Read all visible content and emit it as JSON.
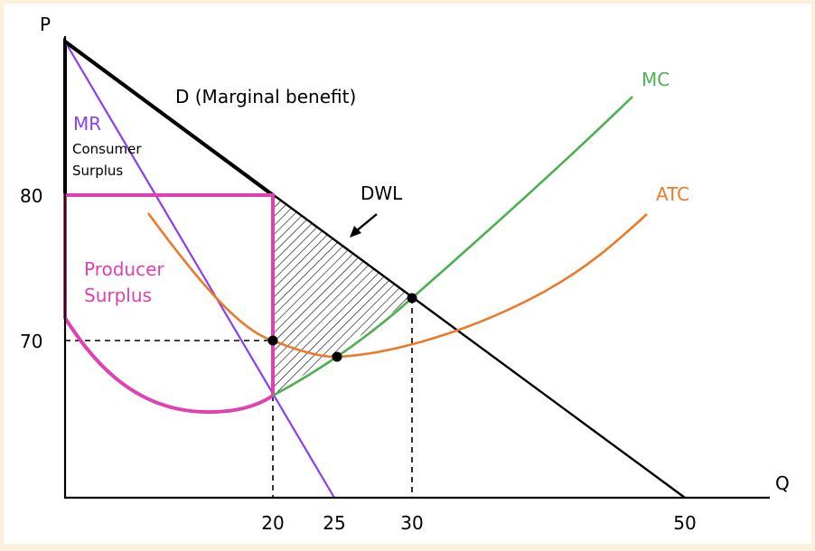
{
  "chart_data": {
    "type": "line",
    "title": "",
    "xlabel": "Q",
    "ylabel": "P",
    "xticks": [
      "20",
      "25",
      "30",
      "50"
    ],
    "yticks": [
      "80",
      "70"
    ],
    "colors": {
      "demand": "#000000",
      "mr": "#8a3ff0",
      "mc": "#4cb050",
      "atc": "#ea7a2a",
      "producer_surplus": "#e040b0"
    },
    "series": [
      {
        "name": "D (Marginal benefit)",
        "x": [
          0,
          20,
          50
        ],
        "y": [
          90,
          80,
          55
        ]
      },
      {
        "name": "MR",
        "x": [
          0,
          25
        ],
        "y": [
          90,
          55
        ]
      },
      {
        "name": "MC",
        "x": [
          20,
          30,
          46
        ],
        "y": [
          66,
          74,
          85
        ]
      },
      {
        "name": "ATC",
        "x": [
          7,
          20,
          22,
          30,
          47
        ],
        "y": [
          78,
          70,
          69,
          70,
          79
        ]
      }
    ],
    "points": [
      {
        "x": 20,
        "y": 70
      },
      {
        "x": 22,
        "y": 69
      },
      {
        "x": 30,
        "y": 74
      }
    ],
    "annotations": {
      "mr_label": "MR",
      "consumer_surplus_line1": "Consumer",
      "consumer_surplus_line2": "Surplus",
      "producer_surplus_line1": "Producer",
      "producer_surplus_line2": "Surplus",
      "dwl": "DWL",
      "demand": "D (Marginal benefit)",
      "mc": "MC",
      "atc": "ATC"
    }
  }
}
